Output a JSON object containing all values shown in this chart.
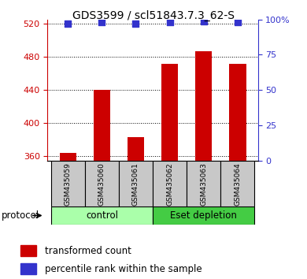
{
  "title": "GDS3599 / scl51843.7.3_62-S",
  "samples": [
    "GSM435059",
    "GSM435060",
    "GSM435061",
    "GSM435062",
    "GSM435063",
    "GSM435064"
  ],
  "red_values": [
    364,
    440,
    383,
    472,
    487,
    472
  ],
  "blue_values": [
    97,
    98,
    97,
    98,
    99,
    98
  ],
  "ylim_left": [
    355,
    525
  ],
  "ylim_right": [
    0,
    100
  ],
  "yticks_left": [
    360,
    400,
    440,
    480,
    520
  ],
  "yticks_right": [
    0,
    25,
    50,
    75,
    100
  ],
  "ytick_labels_right": [
    "0",
    "25",
    "50",
    "75",
    "100%"
  ],
  "control_samples": [
    0,
    1,
    2
  ],
  "eset_samples": [
    3,
    4,
    5
  ],
  "protocol_label": "protocol",
  "legend_red": "transformed count",
  "legend_blue": "percentile rank within the sample",
  "bar_color": "#CC0000",
  "dot_color": "#3333CC",
  "bg_color": "#C8C8C8",
  "plot_bg": "#FFFFFF",
  "green_light": "#AAFFAA",
  "green_dark": "#44CC44",
  "bar_width": 0.5,
  "dot_size": 40,
  "title_fontsize": 10,
  "tick_fontsize": 8,
  "label_fontsize": 8.5
}
